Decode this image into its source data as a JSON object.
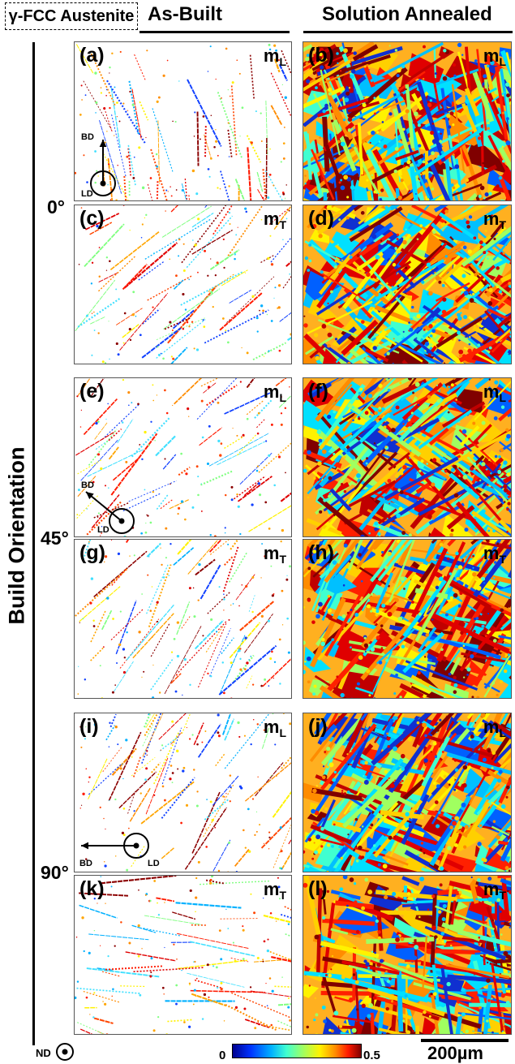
{
  "header": {
    "phase_tag": "γ-FCC Austenite",
    "col_left": "As-Built",
    "col_right": "Solution Annealed"
  },
  "axis_title": "Build Orientation",
  "angles": [
    "0°",
    "45°",
    "90°"
  ],
  "coord_labels": {
    "bd": "BD",
    "ld": "LD",
    "nd": "ND"
  },
  "panels": [
    {
      "id": "a",
      "label": "(a)",
      "m_base": "m",
      "m_sub": "L"
    },
    {
      "id": "b",
      "label": "(b)",
      "m_base": "m",
      "m_sub": "L"
    },
    {
      "id": "c",
      "label": "(c)",
      "m_base": "m",
      "m_sub": "T"
    },
    {
      "id": "d",
      "label": "(d)",
      "m_base": "m",
      "m_sub": "T"
    },
    {
      "id": "e",
      "label": "(e)",
      "m_base": "m",
      "m_sub": "L"
    },
    {
      "id": "f",
      "label": "(f)",
      "m_base": "m",
      "m_sub": "L"
    },
    {
      "id": "g",
      "label": "(g)",
      "m_base": "m",
      "m_sub": "T"
    },
    {
      "id": "h",
      "label": "(h)",
      "m_base": "m",
      "m_sub": "T"
    },
    {
      "id": "i",
      "label": "(i)",
      "m_base": "m",
      "m_sub": "L"
    },
    {
      "id": "j",
      "label": "(j)",
      "m_base": "m",
      "m_sub": "L"
    },
    {
      "id": "k",
      "label": "(k)",
      "m_base": "m",
      "m_sub": "T"
    },
    {
      "id": "l",
      "label": "(l)",
      "m_base": "m",
      "m_sub": "T"
    }
  ],
  "colorbar": {
    "min": "0",
    "max": "0.5"
  },
  "scale_bar": "200µm",
  "colors": {
    "low": "#00008f",
    "mid_blue": "#00b0ff",
    "mid_green": "#80ff80",
    "mid_yellow": "#fff200",
    "high": "#ff1a00",
    "max": "#800000"
  }
}
